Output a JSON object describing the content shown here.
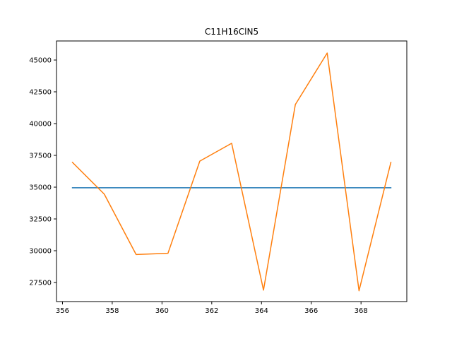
{
  "chart_data": {
    "type": "line",
    "title": "C11H16ClN5",
    "xlabel": "",
    "ylabel": "",
    "xlim": [
      355.76,
      369.84
    ],
    "ylim": [
      26000,
      46500
    ],
    "grid": false,
    "xticks": [
      356,
      358,
      360,
      362,
      364,
      366,
      368
    ],
    "yticks": [
      27500,
      30000,
      32500,
      35000,
      37500,
      40000,
      42500,
      45000
    ],
    "series": [
      {
        "color": "#1f77b4",
        "x": [
          356.4,
          369.2
        ],
        "y": [
          34950,
          34950
        ]
      },
      {
        "color": "#ff7f0e",
        "x": [
          356.4,
          357.68,
          358.96,
          360.24,
          361.52,
          362.8,
          364.08,
          365.36,
          366.64,
          367.92,
          369.2
        ],
        "y": [
          36950,
          34450,
          29700,
          29800,
          37050,
          38450,
          26900,
          41500,
          45550,
          26850,
          36950
        ]
      }
    ]
  }
}
